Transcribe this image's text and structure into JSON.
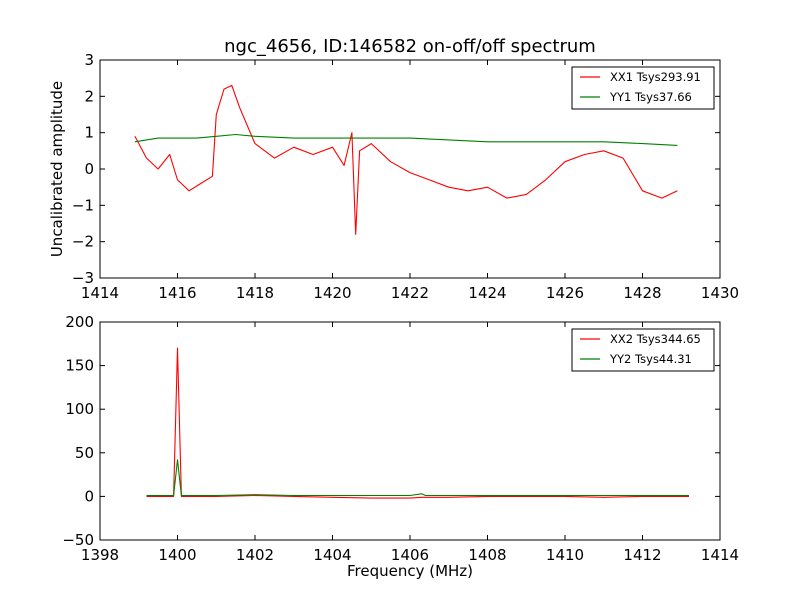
{
  "chart_data": [
    {
      "type": "line",
      "title": "ngc_4656, ID:146582 on-off/off spectrum",
      "xlabel": "",
      "ylabel": "Uncalibrated amplitude",
      "xlim": [
        1414,
        1430
      ],
      "ylim": [
        -3,
        3
      ],
      "xticks": [
        "1414",
        "1416",
        "1418",
        "1420",
        "1422",
        "1424",
        "1426",
        "1428",
        "1430"
      ],
      "yticks": [
        "3",
        "2",
        "1",
        "0",
        "−1",
        "−2",
        "−3"
      ],
      "legend_position": "top-right",
      "series": [
        {
          "name": "XX1 Tsys293.91",
          "color": "#ff0000",
          "x": [
            1414.9,
            1415.2,
            1415.5,
            1415.8,
            1416.0,
            1416.3,
            1416.6,
            1416.9,
            1417.0,
            1417.2,
            1417.4,
            1417.6,
            1417.8,
            1418.0,
            1418.5,
            1419.0,
            1419.5,
            1420.0,
            1420.3,
            1420.5,
            1420.6,
            1420.7,
            1421.0,
            1421.5,
            1422.0,
            1422.5,
            1423.0,
            1423.5,
            1424.0,
            1424.5,
            1425.0,
            1425.5,
            1426.0,
            1426.5,
            1427.0,
            1427.5,
            1428.0,
            1428.5,
            1428.9
          ],
          "y": [
            0.9,
            0.3,
            0.0,
            0.4,
            -0.3,
            -0.6,
            -0.4,
            -0.2,
            1.5,
            2.2,
            2.3,
            1.7,
            1.2,
            0.7,
            0.3,
            0.6,
            0.4,
            0.6,
            0.1,
            1.0,
            -1.8,
            0.5,
            0.7,
            0.2,
            -0.1,
            -0.3,
            -0.5,
            -0.6,
            -0.5,
            -0.8,
            -0.7,
            -0.3,
            0.2,
            0.4,
            0.5,
            0.3,
            -0.6,
            -0.8,
            -0.6
          ]
        },
        {
          "name": "YY1 Tsys37.66",
          "color": "#008000",
          "x": [
            1414.9,
            1415.5,
            1416.0,
            1416.5,
            1417.0,
            1417.5,
            1418.0,
            1419.0,
            1420.0,
            1421.0,
            1422.0,
            1423.0,
            1424.0,
            1425.0,
            1426.0,
            1427.0,
            1428.0,
            1428.9
          ],
          "y": [
            0.75,
            0.85,
            0.85,
            0.85,
            0.9,
            0.95,
            0.9,
            0.85,
            0.85,
            0.85,
            0.85,
            0.8,
            0.75,
            0.75,
            0.75,
            0.75,
            0.7,
            0.65
          ]
        }
      ]
    },
    {
      "type": "line",
      "title": "",
      "xlabel": "Frequency (MHz)",
      "ylabel": "",
      "xlim": [
        1398,
        1414
      ],
      "ylim": [
        -50,
        200
      ],
      "xticks": [
        "1398",
        "1400",
        "1402",
        "1404",
        "1406",
        "1408",
        "1410",
        "1412",
        "1414"
      ],
      "yticks": [
        "200",
        "150",
        "100",
        "50",
        "0",
        "−50"
      ],
      "legend_position": "top-right",
      "series": [
        {
          "name": "XX2 Tsys344.65",
          "color": "#ff0000",
          "x": [
            1399.2,
            1399.9,
            1400.0,
            1400.1,
            1401.0,
            1402.0,
            1403.0,
            1404.0,
            1405.0,
            1406.0,
            1406.3,
            1407.0,
            1408.0,
            1409.0,
            1410.0,
            1411.0,
            1412.0,
            1413.2
          ],
          "y": [
            0,
            0,
            170,
            0,
            0,
            1,
            0,
            -1,
            -2,
            -2,
            -1,
            -1,
            0,
            0,
            0,
            -1,
            0,
            0
          ]
        },
        {
          "name": "YY2 Tsys44.31",
          "color": "#008000",
          "x": [
            1399.2,
            1399.9,
            1400.0,
            1400.1,
            1401.0,
            1402.0,
            1403.0,
            1404.0,
            1405.0,
            1406.0,
            1406.3,
            1406.4,
            1407.0,
            1408.0,
            1409.0,
            1410.0,
            1411.0,
            1412.0,
            1413.2
          ],
          "y": [
            1,
            1,
            42,
            1,
            1,
            2,
            1,
            1,
            1,
            1,
            3,
            1,
            1,
            1,
            1,
            1,
            1,
            1,
            1
          ]
        }
      ]
    }
  ]
}
